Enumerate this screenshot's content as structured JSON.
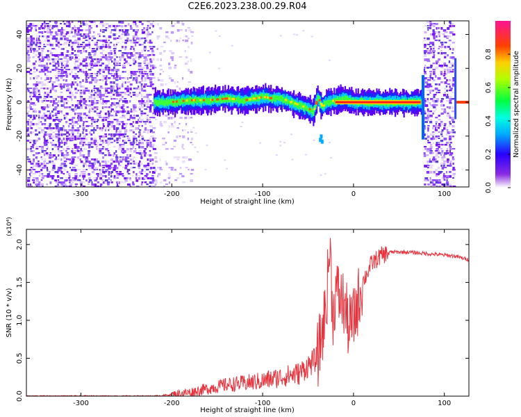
{
  "title": "C2E6.2023.238.00.29.R04",
  "chart_data": [
    {
      "type": "heatmap",
      "xlabel": "Height of straight line (km)",
      "ylabel": "Frequency (Hz)",
      "xlim": [
        -360,
        127
      ],
      "ylim": [
        -50,
        48
      ],
      "xticks": [
        "-300",
        "-200",
        "-100",
        "0",
        "100"
      ],
      "xtick_values": [
        -300,
        -200,
        -100,
        0,
        100
      ],
      "yticks": [
        "-40",
        "-20",
        "0",
        "20",
        "40"
      ],
      "ytick_values": [
        -40,
        -20,
        0,
        20,
        40
      ],
      "colorbar": {
        "label": "Normalized spectral amplitude",
        "range": [
          0.0,
          1.0
        ],
        "ticks": [
          "0.0",
          "0.2",
          "0.4",
          "0.6",
          "0.8"
        ],
        "tick_values": [
          0.0,
          0.2,
          0.4,
          0.6,
          0.8
        ],
        "colormap": [
          "#ffffff",
          "#7b00ff",
          "#0000ff",
          "#00e5ff",
          "#00ff00",
          "#ffff00",
          "#ff8000",
          "#ff0000",
          "#ff2090"
        ]
      },
      "features": {
        "noise_regions": [
          [
            -360,
            -220
          ],
          [
            -220,
            -180
          ],
          [
            77,
            110
          ]
        ],
        "signal_track": {
          "x": [
            -220,
            -200,
            -180,
            -160,
            -140,
            -120,
            -100,
            -90,
            -80,
            -70,
            -60,
            -50,
            -45,
            -40,
            -35,
            -30,
            -20,
            -10,
            0,
            20,
            40,
            60,
            74
          ],
          "freq": [
            0,
            0,
            1,
            1,
            2,
            1,
            3,
            2,
            2,
            0,
            -2,
            -4,
            -6,
            3,
            -3,
            0,
            1,
            2,
            0,
            0,
            0,
            0,
            0
          ]
        },
        "carrier_line": {
          "x_start": -20,
          "x_end": 74,
          "freq": 0
        }
      }
    },
    {
      "type": "line",
      "xlabel": "Height of straight line (km)",
      "ylabel": "SNR (10 * v/v)",
      "y_multiplier": "(x10⁴)",
      "xlim": [
        -360,
        127
      ],
      "ylim": [
        0,
        2.2
      ],
      "xticks": [
        "-300",
        "-200",
        "-100",
        "0",
        "100"
      ],
      "xtick_values": [
        -300,
        -200,
        -100,
        0,
        100
      ],
      "yticks": [
        "0.0",
        "0.5",
        "1.0",
        "1.5",
        "2.0"
      ],
      "ytick_values": [
        0.0,
        0.5,
        1.0,
        1.5,
        2.0
      ],
      "color": "#e8323c",
      "series": [
        {
          "x": [
            -360,
            -300,
            -250,
            -220,
            -200,
            -180,
            -160,
            -140,
            -120,
            -100,
            -80,
            -60,
            -50,
            -40,
            -35,
            -30,
            -28,
            -26,
            -24,
            -22,
            -20,
            -15,
            -10,
            -5,
            0,
            10,
            20,
            30,
            40,
            60,
            80,
            100,
            110,
            127
          ],
          "values": [
            0.0,
            0.0,
            0.0,
            0.0,
            0.02,
            0.05,
            0.1,
            0.15,
            0.17,
            0.2,
            0.25,
            0.3,
            0.4,
            0.5,
            0.8,
            1.2,
            1.6,
            2.0,
            1.4,
            1.0,
            1.4,
            1.3,
            1.2,
            0.9,
            1.0,
            1.5,
            1.75,
            1.85,
            1.9,
            1.9,
            1.88,
            1.86,
            1.85,
            1.8
          ]
        }
      ]
    }
  ]
}
